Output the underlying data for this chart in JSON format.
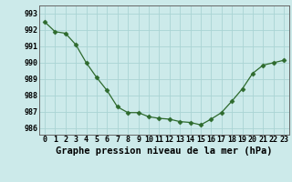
{
  "x": [
    0,
    1,
    2,
    3,
    4,
    5,
    6,
    7,
    8,
    9,
    10,
    11,
    12,
    13,
    14,
    15,
    16,
    17,
    18,
    19,
    20,
    21,
    22,
    23
  ],
  "y": [
    992.5,
    991.9,
    991.8,
    991.1,
    990.0,
    989.1,
    988.3,
    987.3,
    986.95,
    986.95,
    986.7,
    986.6,
    986.55,
    986.4,
    986.35,
    986.2,
    986.55,
    986.95,
    987.65,
    988.4,
    989.35,
    989.85,
    990.0,
    990.15
  ],
  "line_color": "#2d6a2d",
  "marker": "D",
  "marker_size": 2.5,
  "bg_color": "#cceaea",
  "grid_color": "#aad4d4",
  "title": "Graphe pression niveau de la mer (hPa)",
  "xlabel_ticks": [
    "0",
    "1",
    "2",
    "3",
    "4",
    "5",
    "6",
    "7",
    "8",
    "9",
    "10",
    "11",
    "12",
    "13",
    "14",
    "15",
    "16",
    "17",
    "18",
    "19",
    "20",
    "21",
    "22",
    "23"
  ],
  "yticks": [
    986,
    987,
    988,
    989,
    990,
    991,
    992,
    993
  ],
  "ylim": [
    985.6,
    993.5
  ],
  "xlim": [
    -0.5,
    23.5
  ],
  "title_fontsize": 7.5,
  "tick_fontsize": 6.0
}
